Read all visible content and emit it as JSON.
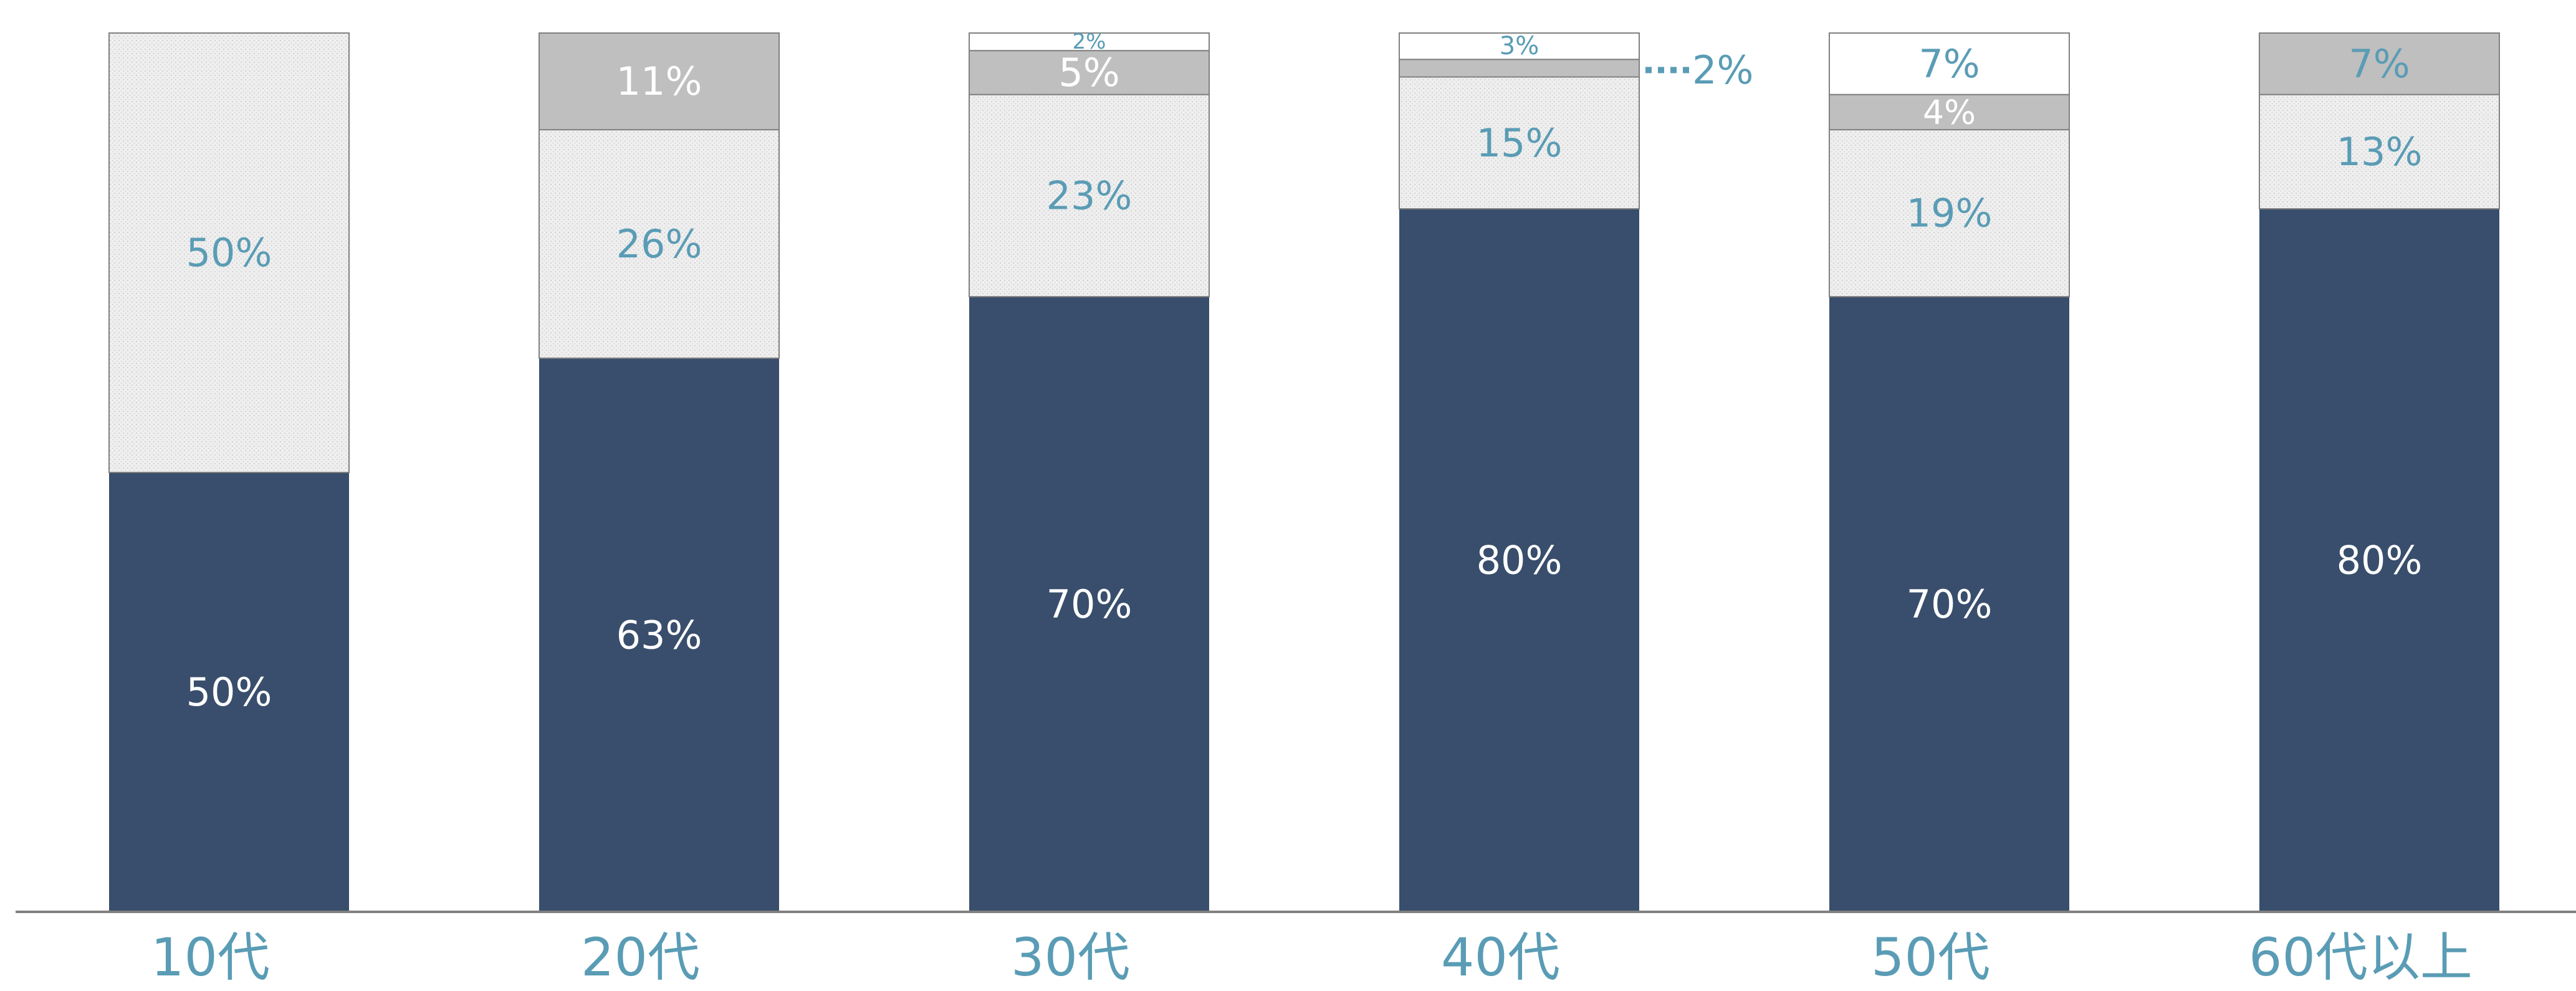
{
  "chart_data": {
    "type": "bar",
    "stacked": true,
    "orientation": "vertical",
    "categories": [
      "10代",
      "20代",
      "30代",
      "40代",
      "50代",
      "60代以上"
    ],
    "series": [
      {
        "color": "#394e6c",
        "label_color": "#ffffff",
        "values": [
          50,
          63,
          70,
          80,
          70,
          80
        ],
        "labels": [
          "50%",
          "63%",
          "70%",
          "80%",
          "70%",
          "80%"
        ]
      },
      {
        "color": "#eeeeee",
        "pattern": "dotted",
        "label_color": "#5a9cb5",
        "values": [
          50,
          26,
          23,
          15,
          19,
          13
        ],
        "labels": [
          "50%",
          "26%",
          "23%",
          "15%",
          "19%",
          "13%"
        ]
      },
      {
        "color": "#bfbfbf",
        "label_color": "#ffffff",
        "values": [
          0,
          11,
          5,
          2,
          4,
          7
        ],
        "labels": [
          "",
          "11%",
          "5%",
          "2%",
          "4%",
          "7%"
        ],
        "label_colors": [
          "#ffffff",
          "#ffffff",
          "#ffffff",
          "#5a9cb5",
          "#ffffff",
          "#5a9cb5"
        ],
        "callout": [
          false,
          false,
          false,
          true,
          false,
          false
        ]
      },
      {
        "color": "#ffffff",
        "label_color": "#5a9cb5",
        "values": [
          0,
          0,
          2,
          3,
          7,
          0
        ],
        "labels": [
          "",
          "",
          "2%",
          "3%",
          "7%",
          ""
        ]
      }
    ],
    "ylim": [
      0,
      100
    ],
    "grid": false,
    "legend": "none",
    "axis_label_color": "#5a9cb5",
    "axis_line_color": "#808080",
    "bar_outline_color": "#808080"
  }
}
